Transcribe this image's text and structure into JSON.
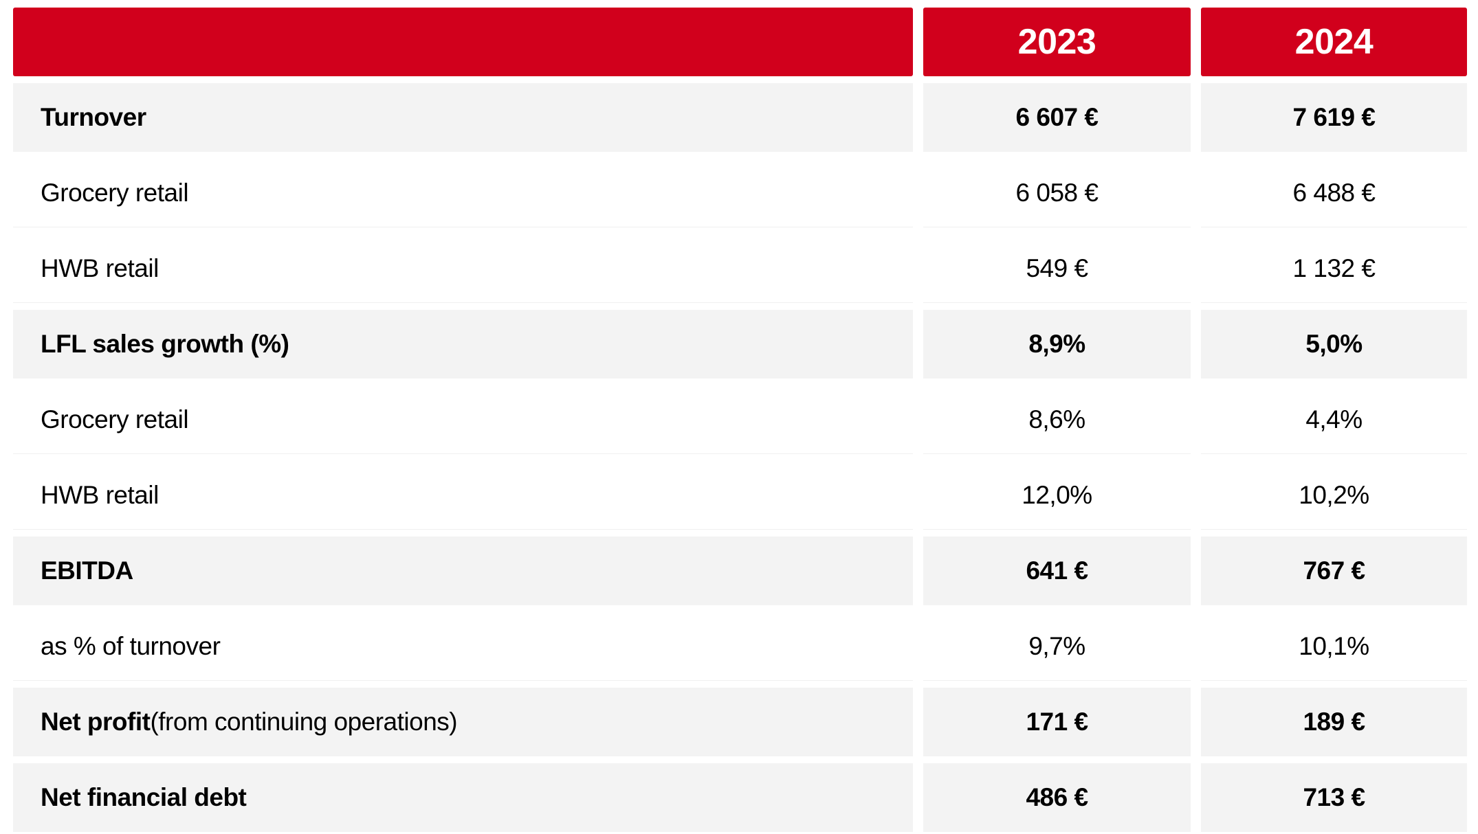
{
  "header": {
    "label": "",
    "year1": "2023",
    "year2": "2024"
  },
  "rows": [
    {
      "label": "Turnover",
      "suffix": "",
      "y1": "6 607 €",
      "y2": "7 619 €",
      "style": "bold shaded"
    },
    {
      "label": "Grocery retail",
      "suffix": "",
      "y1": "6 058 €",
      "y2": "6 488 €",
      "style": "plain"
    },
    {
      "label": "HWB retail",
      "suffix": "",
      "y1": "549 €",
      "y2": "1 132 €",
      "style": "plain"
    },
    {
      "label": "LFL sales growth (%)",
      "suffix": "",
      "y1": "8,9%",
      "y2": "5,0%",
      "style": "bold shaded"
    },
    {
      "label": "Grocery retail",
      "suffix": "",
      "y1": "8,6%",
      "y2": "4,4%",
      "style": "plain"
    },
    {
      "label": "HWB retail",
      "suffix": "",
      "y1": "12,0%",
      "y2": "10,2%",
      "style": "plain"
    },
    {
      "label": "EBITDA",
      "suffix": "",
      "y1": "641 €",
      "y2": "767 €",
      "style": "bold shaded"
    },
    {
      "label": "as % of turnover",
      "suffix": "",
      "y1": "9,7%",
      "y2": "10,1%",
      "style": "plain"
    },
    {
      "label": "Net profit",
      "suffix": " (from continuing operations)",
      "y1": "171 €",
      "y2": "189 €",
      "style": "bold shaded"
    },
    {
      "label": "Net financial debt",
      "suffix": "",
      "y1": "486 €",
      "y2": "713 €",
      "style": "bold shaded"
    }
  ],
  "colors": {
    "header_bg": "#d1001c",
    "header_text": "#ffffff",
    "shaded_bg": "#f3f3f3"
  }
}
